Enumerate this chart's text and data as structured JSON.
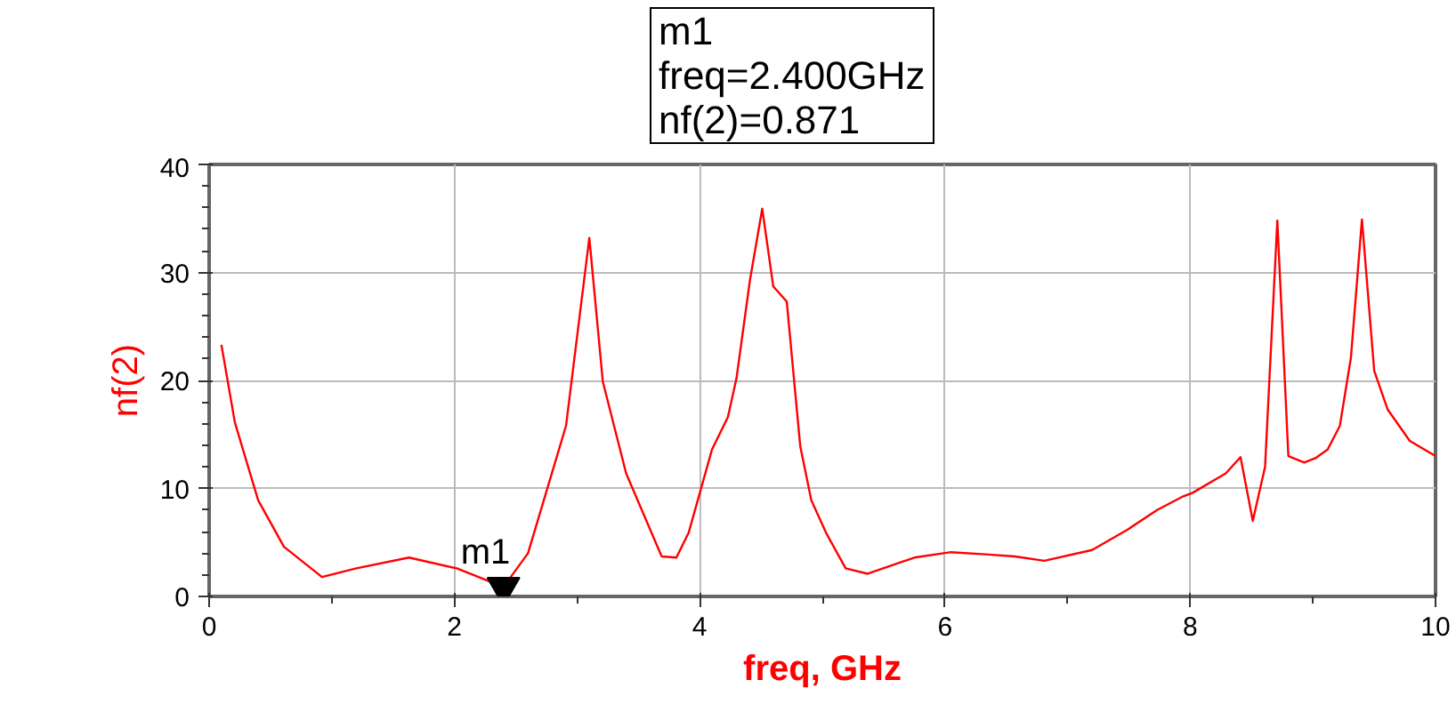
{
  "chart_data": {
    "type": "line",
    "xlabel": "freq, GHz",
    "ylabel": "nf(2)",
    "xlim": [
      0,
      10
    ],
    "ylim": [
      0,
      40
    ],
    "xticks": [
      0,
      2,
      4,
      6,
      8,
      10
    ],
    "yticks": [
      0,
      10,
      20,
      30,
      40
    ],
    "grid": true,
    "series": [
      {
        "color": "#ff0000",
        "x": [
          0.1,
          0.21,
          0.4,
          0.61,
          0.92,
          1.2,
          1.63,
          2.02,
          2.4,
          2.6,
          2.91,
          3.1,
          3.21,
          3.4,
          3.69,
          3.81,
          3.91,
          4.1,
          4.23,
          4.3,
          4.41,
          4.51,
          4.6,
          4.71,
          4.82,
          4.91,
          5.03,
          5.19,
          5.37,
          5.75,
          6.05,
          6.33,
          6.57,
          6.81,
          7.2,
          7.49,
          7.73,
          7.93,
          8.02,
          8.29,
          8.41,
          8.51,
          8.61,
          8.71,
          8.8,
          8.93,
          9.02,
          9.12,
          9.22,
          9.31,
          9.4,
          9.5,
          9.61,
          9.79,
          10
        ],
        "values": [
          23.3,
          16.1,
          8.9,
          4.6,
          1.8,
          2.6,
          3.6,
          2.6,
          0.871,
          4.0,
          15.8,
          33.2,
          19.9,
          11.4,
          3.7,
          3.6,
          5.9,
          13.6,
          16.6,
          20.2,
          29.3,
          35.9,
          28.7,
          27.3,
          13.9,
          8.9,
          5.9,
          2.6,
          2.1,
          3.6,
          4.1,
          3.9,
          3.7,
          3.3,
          4.3,
          6.2,
          8.0,
          9.2,
          9.6,
          11.4,
          12.9,
          7.0,
          12.0,
          34.8,
          13.0,
          12.4,
          12.8,
          13.6,
          15.8,
          22.1,
          34.9,
          20.9,
          17.3,
          14.4,
          13.0
        ]
      },
      {
        "type": "scatter",
        "color": "#000000",
        "x": [
          2.4
        ],
        "values": [
          0.871
        ]
      }
    ],
    "annotations": [
      {
        "text": "m1",
        "x": 2.4,
        "y": 0.871
      },
      "m1",
      "freq=2.400GHz",
      "nf(2)=0.871"
    ]
  }
}
